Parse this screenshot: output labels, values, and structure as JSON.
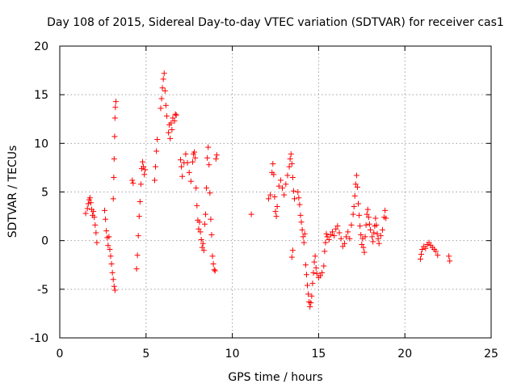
{
  "chart_data": {
    "type": "scatter",
    "title": "Day 108 of 2015, Sidereal Day-to-day VTEC variation (SDTVAR) for receiver cas1",
    "xlabel": "GPS time / hours",
    "ylabel": "SDTVAR / TECUs",
    "xlim": [
      0,
      25
    ],
    "ylim": [
      -10,
      20
    ],
    "xticks": [
      "0",
      "5",
      "10",
      "15",
      "20",
      "25"
    ],
    "yticks": [
      "-10",
      "-5",
      "0",
      "5",
      "10",
      "15",
      "20"
    ],
    "xtick_values": [
      0,
      5,
      10,
      15,
      20,
      25
    ],
    "ytick_values": [
      -10,
      -5,
      0,
      5,
      10,
      15,
      20
    ],
    "grid": true,
    "marker": "+",
    "color": "#ff0000",
    "segments": [
      {
        "name": "arc-1",
        "points": [
          [
            1.5,
            2.8
          ],
          [
            1.6,
            3.3
          ],
          [
            1.65,
            3.8
          ],
          [
            1.7,
            4.2
          ],
          [
            1.75,
            4.4
          ],
          [
            1.8,
            3.9
          ],
          [
            1.85,
            3.2
          ],
          [
            1.9,
            2.6
          ],
          [
            1.95,
            3.0
          ],
          [
            2.0,
            2.4
          ],
          [
            2.05,
            1.6
          ],
          [
            2.1,
            0.8
          ],
          [
            2.15,
            -0.2
          ]
        ]
      },
      {
        "name": "arc-2",
        "points": [
          [
            2.6,
            3.1
          ],
          [
            2.65,
            2.2
          ],
          [
            2.7,
            1.0
          ],
          [
            2.75,
            0.3
          ],
          [
            2.8,
            -0.5
          ],
          [
            2.85,
            0.4
          ],
          [
            2.9,
            -0.9
          ],
          [
            2.95,
            -1.6
          ],
          [
            3.0,
            -2.4
          ],
          [
            3.05,
            -3.3
          ],
          [
            3.1,
            -4.0
          ],
          [
            3.15,
            -4.7
          ],
          [
            3.2,
            -5.1
          ]
        ]
      },
      {
        "name": "arc-3",
        "points": [
          [
            3.1,
            4.3
          ],
          [
            3.13,
            6.5
          ],
          [
            3.15,
            8.4
          ],
          [
            3.18,
            10.7
          ],
          [
            3.2,
            12.6
          ],
          [
            3.22,
            13.7
          ],
          [
            3.25,
            14.3
          ]
        ]
      },
      {
        "name": "arc-4",
        "points": [
          [
            4.2,
            6.2
          ],
          [
            4.25,
            5.9
          ],
          [
            4.45,
            -2.9
          ],
          [
            4.5,
            -1.5
          ],
          [
            4.55,
            0.5
          ],
          [
            4.6,
            2.5
          ],
          [
            4.65,
            4.0
          ],
          [
            4.7,
            5.8
          ],
          [
            4.75,
            7.4
          ],
          [
            4.8,
            8.1
          ],
          [
            4.85,
            7.6
          ],
          [
            4.9,
            6.8
          ],
          [
            4.95,
            7.3
          ]
        ]
      },
      {
        "name": "arc-5",
        "points": [
          [
            5.5,
            6.2
          ],
          [
            5.55,
            7.6
          ],
          [
            5.6,
            9.2
          ],
          [
            5.65,
            10.4
          ],
          [
            5.85,
            13.6
          ],
          [
            5.9,
            14.6
          ],
          [
            5.95,
            15.7
          ],
          [
            6.0,
            16.6
          ],
          [
            6.05,
            17.2
          ],
          [
            6.1,
            15.4
          ],
          [
            6.15,
            13.9
          ],
          [
            6.2,
            12.8
          ],
          [
            6.3,
            11.1
          ],
          [
            6.35,
            11.9
          ],
          [
            6.4,
            10.5
          ],
          [
            6.45,
            12.1
          ],
          [
            6.5,
            11.4
          ],
          [
            6.55,
            12.6
          ],
          [
            6.65,
            12.3
          ],
          [
            6.7,
            13.0
          ],
          [
            6.75,
            12.9
          ]
        ]
      },
      {
        "name": "arc-6",
        "points": [
          [
            7.0,
            8.3
          ],
          [
            7.05,
            7.6
          ],
          [
            7.1,
            6.6
          ],
          [
            7.2,
            8.0
          ],
          [
            7.3,
            8.9
          ],
          [
            7.4,
            8.0
          ],
          [
            7.5,
            7.0
          ],
          [
            7.6,
            6.1
          ],
          [
            7.7,
            8.1
          ],
          [
            7.75,
            8.9
          ],
          [
            7.8,
            9.1
          ],
          [
            7.85,
            8.5
          ],
          [
            7.9,
            5.4
          ],
          [
            7.95,
            3.6
          ],
          [
            8.0,
            2.1
          ],
          [
            8.05,
            1.2
          ],
          [
            8.1,
            1.9
          ],
          [
            8.15,
            0.9
          ],
          [
            8.2,
            0.1
          ],
          [
            8.25,
            -0.7
          ],
          [
            8.3,
            -0.3
          ],
          [
            8.35,
            -1.0
          ],
          [
            8.4,
            1.7
          ],
          [
            8.45,
            2.7
          ],
          [
            8.5,
            5.4
          ],
          [
            8.55,
            8.5
          ],
          [
            8.6,
            9.6
          ],
          [
            8.65,
            7.8
          ],
          [
            8.7,
            4.9
          ],
          [
            8.75,
            2.2
          ],
          [
            8.8,
            0.6
          ],
          [
            8.85,
            -1.6
          ],
          [
            8.9,
            -2.4
          ],
          [
            8.95,
            -3.0
          ],
          [
            9.0,
            -3.1
          ],
          [
            9.05,
            8.4
          ],
          [
            9.1,
            8.8
          ]
        ]
      },
      {
        "name": "arc-7",
        "points": [
          [
            11.1,
            2.7
          ]
        ]
      },
      {
        "name": "arc-8",
        "points": [
          [
            12.1,
            4.3
          ],
          [
            12.2,
            4.7
          ],
          [
            12.3,
            7.0
          ],
          [
            12.35,
            7.9
          ],
          [
            12.4,
            6.8
          ],
          [
            12.45,
            4.5
          ],
          [
            12.5,
            3.0
          ],
          [
            12.55,
            2.5
          ],
          [
            12.6,
            3.5
          ],
          [
            12.7,
            5.6
          ],
          [
            12.8,
            6.2
          ],
          [
            12.9,
            5.4
          ],
          [
            13.0,
            4.7
          ],
          [
            13.1,
            5.8
          ],
          [
            13.2,
            6.7
          ],
          [
            13.3,
            7.6
          ],
          [
            13.35,
            8.4
          ],
          [
            13.4,
            8.9
          ],
          [
            13.45,
            7.9
          ],
          [
            13.5,
            6.5
          ],
          [
            13.55,
            5.1
          ],
          [
            13.6,
            4.3
          ],
          [
            13.45,
            -1.7
          ],
          [
            13.5,
            -1.0
          ]
        ]
      },
      {
        "name": "arc-9",
        "points": [
          [
            13.8,
            5.0
          ],
          [
            13.85,
            4.4
          ],
          [
            13.9,
            3.7
          ],
          [
            13.95,
            2.6
          ],
          [
            14.0,
            1.9
          ],
          [
            14.05,
            1.1
          ],
          [
            14.1,
            0.4
          ],
          [
            14.15,
            -0.2
          ],
          [
            14.2,
            0.7
          ],
          [
            14.25,
            -2.5
          ],
          [
            14.3,
            -3.5
          ],
          [
            14.35,
            -4.6
          ],
          [
            14.4,
            -5.5
          ],
          [
            14.45,
            -6.3
          ],
          [
            14.5,
            -6.8
          ],
          [
            14.55,
            -6.4
          ],
          [
            14.6,
            -5.7
          ],
          [
            14.65,
            -4.4
          ],
          [
            14.7,
            -3.3
          ],
          [
            14.75,
            -2.2
          ],
          [
            14.8,
            -1.6
          ],
          [
            14.85,
            -2.8
          ],
          [
            14.9,
            -3.4
          ],
          [
            15.0,
            -3.8
          ],
          [
            15.1,
            -3.6
          ],
          [
            15.2,
            -3.3
          ],
          [
            15.3,
            -2.6
          ],
          [
            15.35,
            -1.1
          ],
          [
            15.4,
            -0.2
          ],
          [
            15.45,
            0.7
          ],
          [
            15.5,
            0.4
          ],
          [
            15.6,
            0.1
          ],
          [
            15.7,
            0.6
          ],
          [
            15.8,
            0.9
          ],
          [
            15.9,
            0.5
          ],
          [
            16.0,
            1.2
          ],
          [
            16.1,
            1.5
          ],
          [
            16.2,
            0.8
          ],
          [
            16.3,
            0.2
          ],
          [
            16.4,
            -0.6
          ],
          [
            16.5,
            -0.3
          ],
          [
            16.6,
            0.4
          ],
          [
            16.7,
            0.9
          ],
          [
            16.8,
            0.2
          ],
          [
            16.9,
            1.6
          ],
          [
            17.0,
            2.7
          ],
          [
            17.05,
            3.5
          ],
          [
            17.1,
            4.6
          ],
          [
            17.15,
            5.8
          ],
          [
            17.2,
            6.7
          ],
          [
            17.25,
            5.5
          ],
          [
            17.3,
            3.8
          ],
          [
            17.35,
            2.6
          ],
          [
            17.4,
            1.5
          ],
          [
            17.45,
            0.6
          ],
          [
            17.5,
            -0.4
          ],
          [
            17.55,
            0.2
          ],
          [
            17.6,
            -0.7
          ],
          [
            17.65,
            -1.2
          ],
          [
            17.7,
            0.4
          ],
          [
            17.75,
            1.6
          ],
          [
            17.8,
            2.7
          ],
          [
            17.85,
            3.2
          ],
          [
            17.9,
            2.4
          ],
          [
            17.95,
            1.7
          ],
          [
            18.0,
            1.1
          ],
          [
            18.1,
            0.4
          ],
          [
            18.15,
            -0.1
          ],
          [
            18.2,
            0.8
          ],
          [
            18.25,
            1.5
          ],
          [
            18.3,
            2.3
          ],
          [
            18.35,
            1.6
          ],
          [
            18.4,
            0.7
          ],
          [
            18.45,
            0.2
          ],
          [
            18.5,
            -0.3
          ],
          [
            18.6,
            0.5
          ],
          [
            18.7,
            1.1
          ],
          [
            18.8,
            2.4
          ],
          [
            18.85,
            3.1
          ],
          [
            18.9,
            2.3
          ]
        ]
      },
      {
        "name": "arc-10",
        "points": [
          [
            20.9,
            -1.9
          ],
          [
            20.95,
            -1.4
          ],
          [
            21.0,
            -0.9
          ],
          [
            21.1,
            -0.6
          ],
          [
            21.2,
            -0.8
          ],
          [
            21.3,
            -0.4
          ],
          [
            21.4,
            -0.2
          ],
          [
            21.5,
            -0.5
          ],
          [
            21.6,
            -0.7
          ],
          [
            21.7,
            -0.9
          ],
          [
            21.8,
            -1.1
          ],
          [
            21.9,
            -1.5
          ],
          [
            22.55,
            -1.6
          ],
          [
            22.6,
            -2.1
          ]
        ]
      }
    ]
  }
}
